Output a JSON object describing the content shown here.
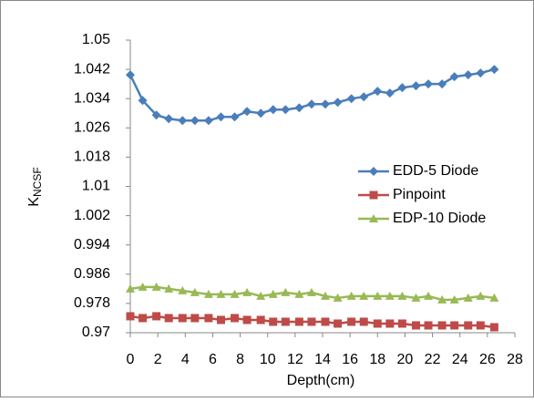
{
  "chart_data": {
    "type": "line",
    "x_label": "Depth(cm)",
    "y_label": "K",
    "y_label_sub": "NCSF",
    "x": [
      0,
      0.9,
      1.9,
      2.8,
      3.8,
      4.7,
      5.7,
      6.6,
      7.6,
      8.5,
      9.5,
      10.4,
      11.3,
      12.3,
      13.2,
      14.2,
      15.1,
      16.1,
      17.0,
      18.0,
      18.9,
      19.8,
      20.8,
      21.7,
      22.7,
      23.6,
      24.6,
      25.5,
      26.5
    ],
    "series": [
      {
        "name": "EDD-5 Diode",
        "color": "#4a7ebb",
        "marker": "diamond",
        "values": [
          1.0405,
          1.0335,
          1.0295,
          1.0285,
          1.028,
          1.028,
          1.028,
          1.029,
          1.029,
          1.0305,
          1.03,
          1.031,
          1.031,
          1.0315,
          1.0325,
          1.0325,
          1.033,
          1.034,
          1.0345,
          1.036,
          1.0355,
          1.037,
          1.0375,
          1.038,
          1.038,
          1.04,
          1.0405,
          1.041,
          1.042
        ]
      },
      {
        "name": "Pinpoint",
        "color": "#be4b48",
        "marker": "square",
        "values": [
          0.9745,
          0.974,
          0.9745,
          0.974,
          0.974,
          0.974,
          0.974,
          0.9735,
          0.974,
          0.9735,
          0.9735,
          0.973,
          0.973,
          0.973,
          0.973,
          0.973,
          0.9725,
          0.973,
          0.973,
          0.9725,
          0.9725,
          0.9725,
          0.972,
          0.972,
          0.972,
          0.972,
          0.972,
          0.972,
          0.9715
        ]
      },
      {
        "name": "EDP-10 Diode",
        "color": "#98b954",
        "marker": "triangle",
        "values": [
          0.982,
          0.9825,
          0.9825,
          0.982,
          0.9815,
          0.981,
          0.9805,
          0.9805,
          0.9805,
          0.981,
          0.98,
          0.9805,
          0.981,
          0.9805,
          0.981,
          0.98,
          0.9795,
          0.98,
          0.98,
          0.98,
          0.98,
          0.98,
          0.9795,
          0.98,
          0.979,
          0.979,
          0.9795,
          0.98,
          0.9795
        ]
      }
    ],
    "xlim": [
      0,
      28
    ],
    "xticks": [
      0,
      2,
      4,
      6,
      8,
      10,
      12,
      14,
      16,
      18,
      20,
      22,
      24,
      26,
      28
    ],
    "ylim": [
      0.97,
      1.05
    ],
    "yticks": [
      0.97,
      0.978,
      0.986,
      0.994,
      1.002,
      1.01,
      1.018,
      1.026,
      1.034,
      1.042,
      1.05
    ],
    "grid": false,
    "legend": "right"
  }
}
